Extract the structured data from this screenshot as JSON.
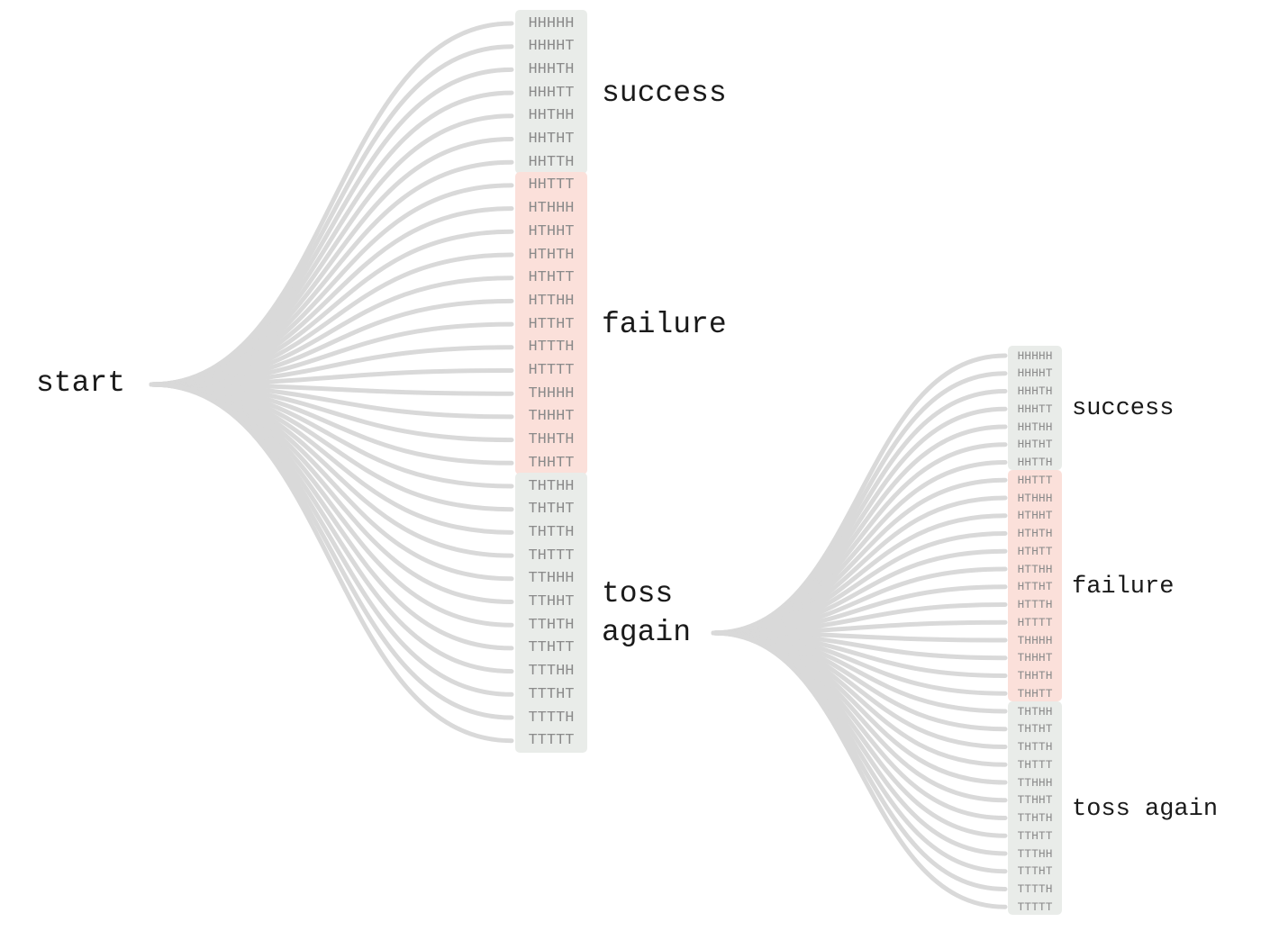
{
  "start_label": "start",
  "trees": [
    {
      "groups": [
        {
          "label": "success",
          "kind": "success",
          "outcomes": [
            "HHHHH",
            "HHHHT",
            "HHHTH",
            "HHHTT",
            "HHTHH",
            "HHTHT",
            "HHTTH"
          ]
        },
        {
          "label": "failure",
          "kind": "failure",
          "outcomes": [
            "HHTTT",
            "HTHHH",
            "HTHHT",
            "HTHTH",
            "HTHTT",
            "HTTHH",
            "HTTHT",
            "HTTTH",
            "HTTTT",
            "THHHH",
            "THHHT",
            "THHTH",
            "THHTT"
          ]
        },
        {
          "label": "toss\nagain",
          "kind": "toss-again",
          "outcomes": [
            "THTHH",
            "THTHT",
            "THTTH",
            "THTTT",
            "TTHHH",
            "TTHHT",
            "TTHTH",
            "TTHTT",
            "TTTHH",
            "TTTHT",
            "TTTTH",
            "TTTTT"
          ]
        }
      ]
    },
    {
      "groups": [
        {
          "label": "success",
          "kind": "success",
          "outcomes": [
            "HHHHH",
            "HHHHT",
            "HHHTH",
            "HHHTT",
            "HHTHH",
            "HHTHT",
            "HHTTH"
          ]
        },
        {
          "label": "failure",
          "kind": "failure",
          "outcomes": [
            "HHTTT",
            "HTHHH",
            "HTHHT",
            "HTHTH",
            "HTHTT",
            "HTTHH",
            "HTTHT",
            "HTTTH",
            "HTTTT",
            "THHHH",
            "THHHT",
            "THHTH",
            "THHTT"
          ]
        },
        {
          "label": "toss again",
          "kind": "toss-again",
          "outcomes": [
            "THTHH",
            "THTHT",
            "THTTH",
            "THTTT",
            "TTHHH",
            "TTHHT",
            "TTHTH",
            "TTHTT",
            "TTTHH",
            "TTTHT",
            "TTTTH",
            "TTTTT"
          ]
        }
      ]
    }
  ],
  "colors": {
    "branch": "#d9d9d9",
    "neutral_box": "#e9ece9",
    "failure_box": "#fbe0da",
    "outcome_text": "#8a8a8a",
    "label_text": "#1a1a1a"
  }
}
